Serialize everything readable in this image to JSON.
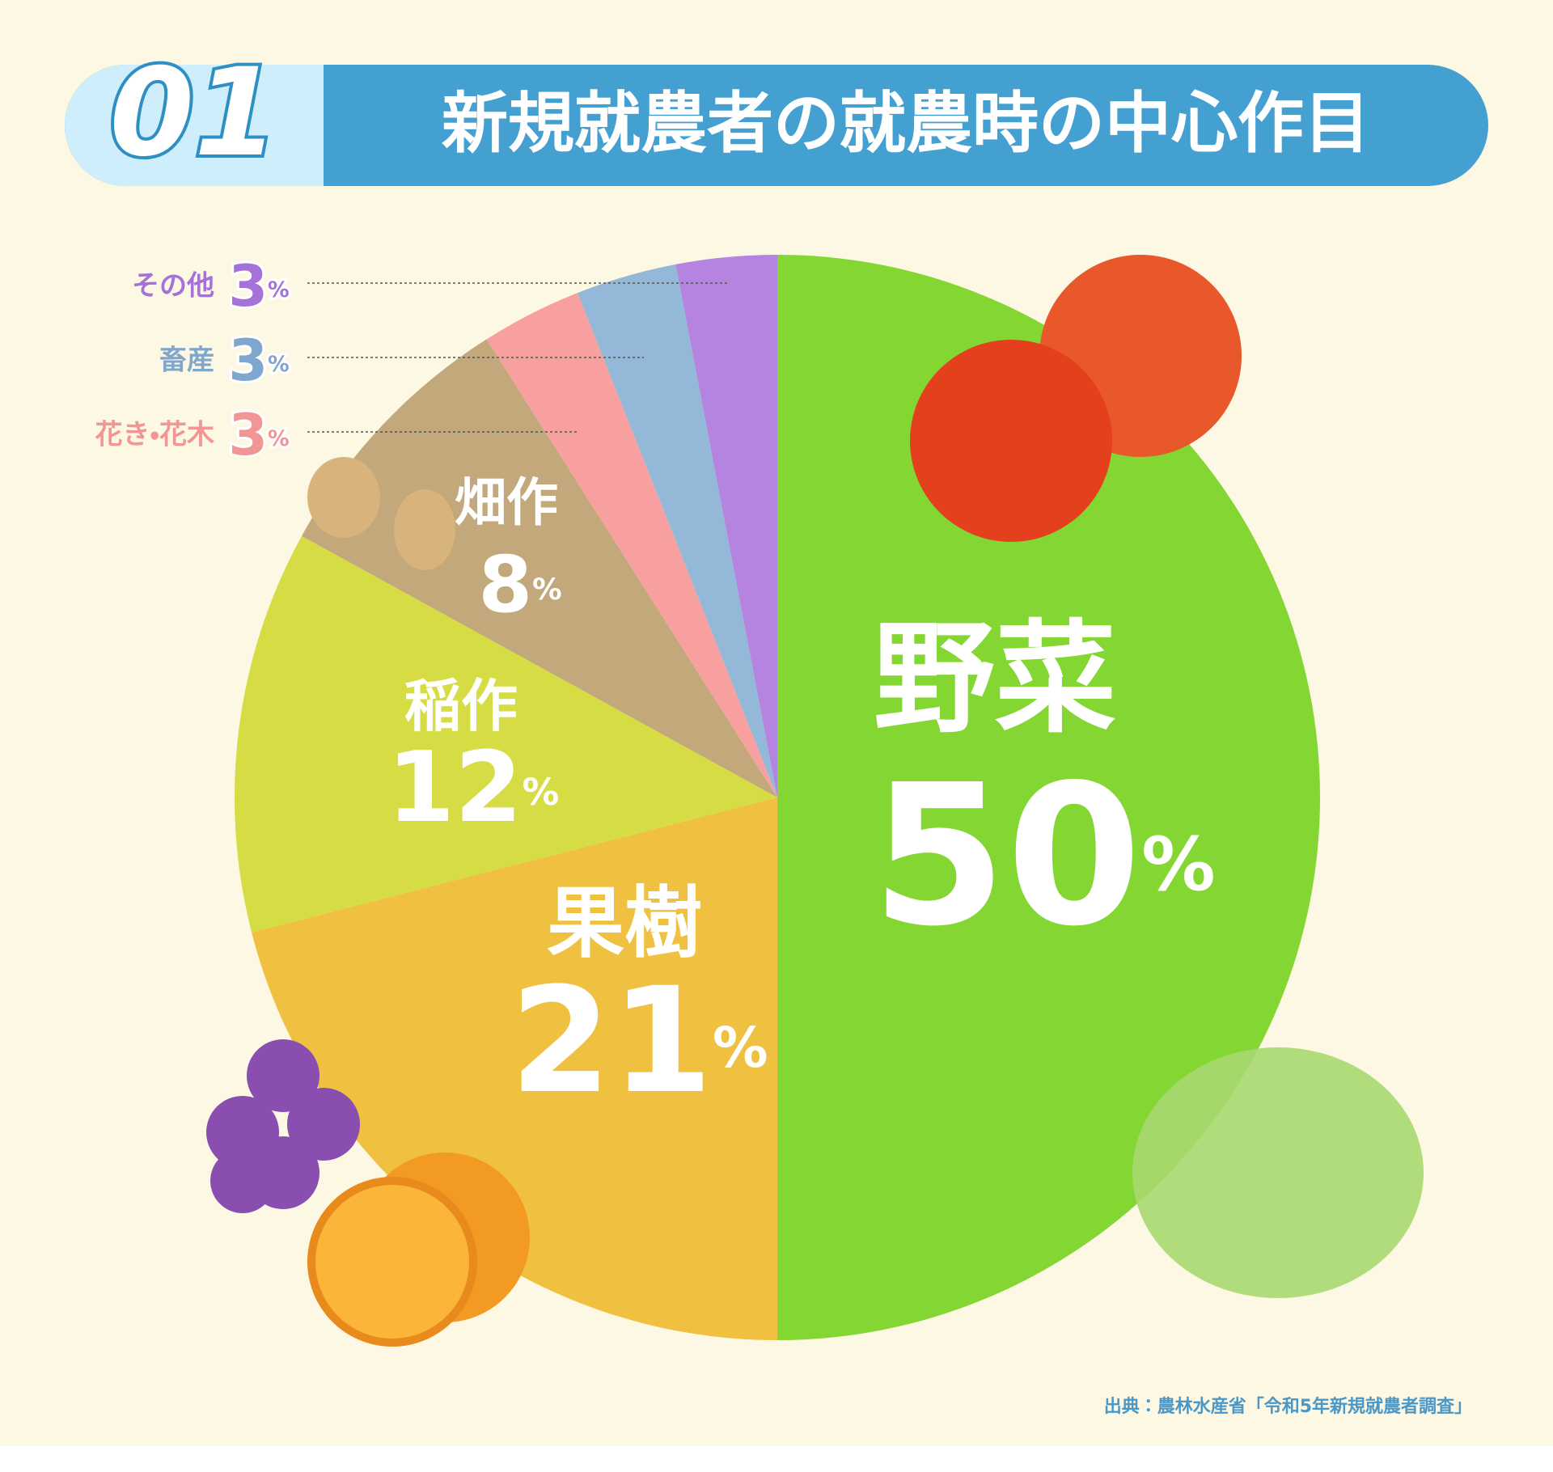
{
  "badge": "01",
  "chart_data": {
    "type": "pie",
    "title": "新規就農者の就農時の中心作目",
    "categories": [
      "野菜",
      "果樹",
      "稲作",
      "畑作",
      "花き・花木",
      "畜産",
      "その他"
    ],
    "values": [
      50,
      21,
      12,
      8,
      3,
      3,
      3
    ],
    "value_labels": [
      "50%",
      "21%",
      "12%",
      "8%",
      "3%",
      "3%",
      "3%"
    ],
    "colors": [
      "#84d632",
      "#f0c040",
      "#d6dd44",
      "#c2a87a",
      "#f8a0a0",
      "#94b8d8",
      "#b584e0"
    ],
    "source": "出典：農林水産省「令和5年新規就農者調査」"
  }
}
